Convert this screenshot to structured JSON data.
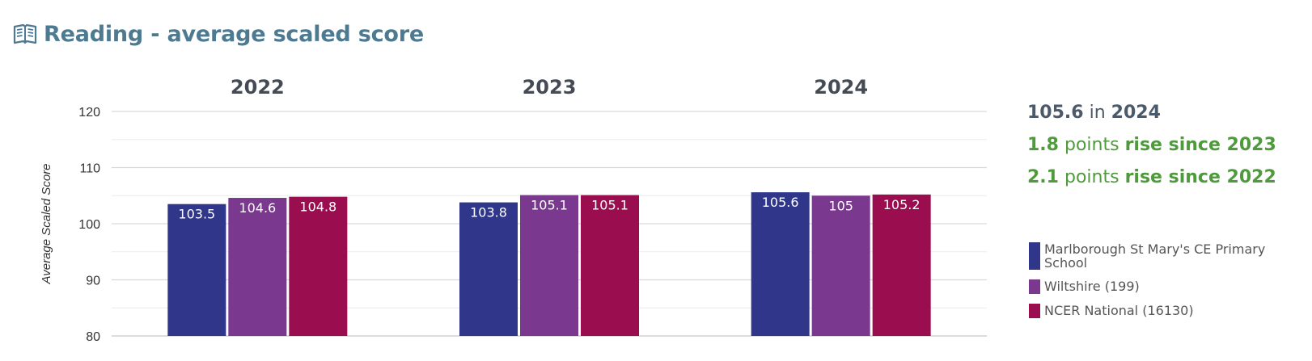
{
  "header": {
    "title": "Reading - average scaled score",
    "icon": "open-book-icon"
  },
  "chart_data": {
    "type": "bar",
    "categories": [
      "2022",
      "2023",
      "2024"
    ],
    "series": [
      {
        "name": "Marlborough St Mary's CE Primary School",
        "color": "#30368a",
        "values": [
          103.5,
          103.8,
          105.6
        ],
        "labels": [
          "103.5",
          "103.8",
          "105.6"
        ]
      },
      {
        "name": "Wiltshire (199)",
        "color": "#7a388e",
        "values": [
          104.6,
          105.1,
          105.0
        ],
        "labels": [
          "104.6",
          "105.1",
          "105"
        ]
      },
      {
        "name": "NCER National (16130)",
        "color": "#9a0d4f",
        "values": [
          104.8,
          105.1,
          105.2
        ],
        "labels": [
          "104.8",
          "105.1",
          "105.2"
        ]
      }
    ],
    "ylabel": "Average Scaled Score",
    "ylim": [
      80,
      120
    ],
    "yticks": [
      "80",
      "90",
      "100",
      "110",
      "120"
    ],
    "grid": true,
    "legend": "right"
  },
  "summary": {
    "score": "105.6",
    "in_word": "in",
    "year": "2024",
    "rise1_value": "1.8",
    "rise1_points": "points",
    "rise1_label": "rise since 2023",
    "rise2_value": "2.1",
    "rise2_points": "points",
    "rise2_label": "rise since 2022"
  }
}
